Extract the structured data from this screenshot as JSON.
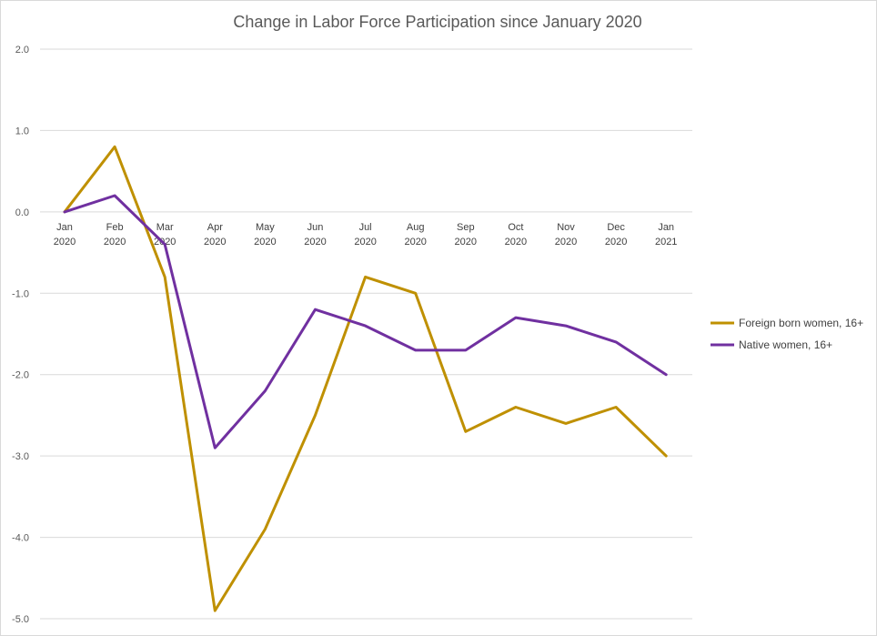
{
  "chart_data": {
    "type": "line",
    "title": "Change in Labor Force Participation since January 2020",
    "xlabel": "",
    "ylabel": "",
    "categories": [
      [
        "Jan",
        "2020"
      ],
      [
        "Feb",
        "2020"
      ],
      [
        "Mar",
        "2020"
      ],
      [
        "Apr",
        "2020"
      ],
      [
        "May",
        "2020"
      ],
      [
        "Jun",
        "2020"
      ],
      [
        "Jul",
        "2020"
      ],
      [
        "Aug",
        "2020"
      ],
      [
        "Sep",
        "2020"
      ],
      [
        "Oct",
        "2020"
      ],
      [
        "Nov",
        "2020"
      ],
      [
        "Dec",
        "2020"
      ],
      [
        "Jan",
        "2021"
      ]
    ],
    "ylim": [
      -5.0,
      2.0
    ],
    "yticks": [
      "2.0",
      "1.0",
      "0.0",
      "-1.0",
      "-2.0",
      "-3.0",
      "-4.0",
      "-5.0"
    ],
    "grid": true,
    "legend_position": "right",
    "series": [
      {
        "name": "Foreign born women, 16+",
        "color": "#bf9000",
        "values": [
          0.0,
          0.8,
          -0.8,
          -4.9,
          -3.9,
          -2.5,
          -0.8,
          -1.0,
          -2.7,
          -2.4,
          -2.6,
          -2.4,
          -3.0
        ]
      },
      {
        "name": "Native women, 16+",
        "color": "#7030a0",
        "values": [
          0.0,
          0.2,
          -0.4,
          -2.9,
          -2.2,
          -1.2,
          -1.4,
          -1.7,
          -1.7,
          -1.3,
          -1.4,
          -1.6,
          -2.0
        ]
      }
    ]
  }
}
